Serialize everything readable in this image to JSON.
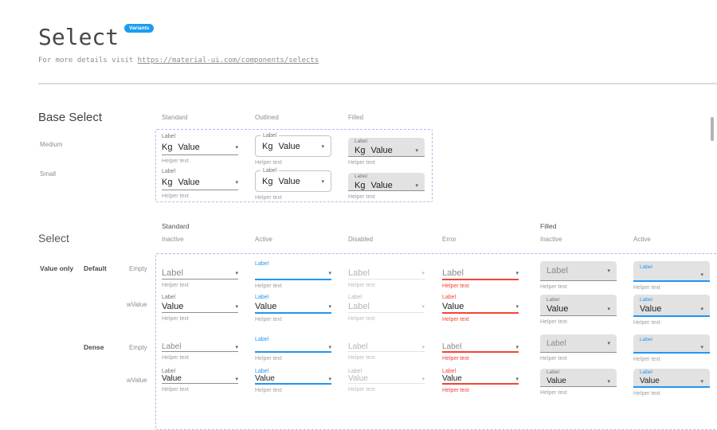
{
  "header": {
    "title": "Select",
    "badge": "Variants",
    "subtitle_prefix": "For more details visit ",
    "subtitle_link": "https://material-ui.com/components/selects"
  },
  "colors": {
    "accent_blue": "#2196F3",
    "error_red": "#F44336",
    "badge_blue": "#1A9DF0",
    "dashed_border": "#B9B9EA"
  },
  "base_select": {
    "heading": "Base Select",
    "columns": [
      "Standard",
      "Outlined",
      "Filled"
    ],
    "rows": [
      "Medium",
      "Small"
    ],
    "cells": {
      "medium_standard": {
        "variant": "standard",
        "state": "inactive",
        "float_label": true,
        "label": "Label",
        "prefix": "Kg",
        "value": "Value",
        "helper": "Helper text"
      },
      "medium_outlined": {
        "variant": "outlined",
        "state": "inactive",
        "float_label": true,
        "label": "Label",
        "prefix": "Kg",
        "value": "Value",
        "helper": "Helper text"
      },
      "medium_filled": {
        "variant": "filled",
        "state": "inactive",
        "float_label": true,
        "label": "Label",
        "prefix": "Kg",
        "value": "Value",
        "helper": "Helper text"
      },
      "small_standard": {
        "variant": "standard",
        "state": "inactive",
        "float_label": true,
        "label": "Label",
        "prefix": "Kg",
        "value": "Value",
        "helper": "Helper text"
      },
      "small_outlined": {
        "variant": "outlined",
        "state": "inactive",
        "float_label": true,
        "label": "Label",
        "prefix": "Kg",
        "value": "Value",
        "helper": "Helper text"
      },
      "small_filled": {
        "variant": "filled",
        "state": "inactive",
        "float_label": true,
        "label": "Label",
        "prefix": "Kg",
        "value": "Value",
        "helper": "Helper text"
      }
    }
  },
  "select_grid": {
    "heading": "Select",
    "group_columns": [
      "Standard",
      "Filled"
    ],
    "columns": [
      "Inactive",
      "Active",
      "Disabled",
      "Error",
      "Inactive",
      "Active"
    ],
    "row_group_label": "Value only",
    "row_groups": [
      "Default",
      "Dense"
    ],
    "rows": [
      "Empty",
      "wValue"
    ],
    "cells": {
      "default_empty_std_inactive": {
        "variant": "standard",
        "state": "inactive",
        "float_label": false,
        "label": "Label",
        "value": "Label",
        "placeholder": true,
        "helper": "Helper text"
      },
      "default_empty_std_active": {
        "variant": "standard",
        "state": "active",
        "float_label": true,
        "label": "Label",
        "value": "",
        "helper": "Helper text"
      },
      "default_empty_std_disabled": {
        "variant": "standard",
        "state": "disabled",
        "float_label": false,
        "label": "Label",
        "value": "Label",
        "placeholder": true,
        "helper": "Helper text"
      },
      "default_empty_std_error": {
        "variant": "standard",
        "state": "error",
        "float_label": false,
        "label": "Label",
        "value": "Label",
        "placeholder": true,
        "helper": "Helper text"
      },
      "default_empty_fil_inactive": {
        "variant": "filled",
        "state": "inactive",
        "float_label": false,
        "label": "Label",
        "value": "Label",
        "placeholder": true,
        "helper": "Helper text"
      },
      "default_empty_fil_active": {
        "variant": "filled",
        "state": "active",
        "float_label": true,
        "label": "Label",
        "value": "",
        "helper": "Helper text"
      },
      "default_value_std_inactive": {
        "variant": "standard",
        "state": "inactive",
        "float_label": true,
        "label": "Label",
        "value": "Value",
        "helper": "Helper text"
      },
      "default_value_std_active": {
        "variant": "standard",
        "state": "active",
        "float_label": true,
        "label": "Label",
        "value": "Value",
        "helper": "Helper text"
      },
      "default_value_std_disabled": {
        "variant": "standard",
        "state": "disabled",
        "float_label": true,
        "label": "Label",
        "value": "Label",
        "placeholder": true,
        "helper": "Helper text"
      },
      "default_value_std_error": {
        "variant": "standard",
        "state": "error",
        "float_label": true,
        "label": "Label",
        "value": "Value",
        "helper": "Helper text"
      },
      "default_value_fil_inactive": {
        "variant": "filled",
        "state": "inactive",
        "float_label": true,
        "label": "Label",
        "value": "Value",
        "helper": "Helper text"
      },
      "default_value_fil_active": {
        "variant": "filled",
        "state": "active",
        "float_label": true,
        "label": "Label",
        "value": "Value",
        "helper": "Helper text"
      },
      "dense_empty_std_inactive": {
        "variant": "standard",
        "state": "inactive",
        "float_label": false,
        "label": "Label",
        "value": "Label",
        "placeholder": true,
        "helper": "Helper text"
      },
      "dense_empty_std_active": {
        "variant": "standard",
        "state": "active",
        "float_label": true,
        "label": "Label",
        "value": "",
        "helper": "Helper text"
      },
      "dense_empty_std_disabled": {
        "variant": "standard",
        "state": "disabled",
        "float_label": false,
        "label": "Label",
        "value": "Label",
        "placeholder": true,
        "helper": "Helper text"
      },
      "dense_empty_std_error": {
        "variant": "standard",
        "state": "error",
        "float_label": false,
        "label": "Label",
        "value": "Label",
        "placeholder": true,
        "helper": "Helper text"
      },
      "dense_empty_fil_inactive": {
        "variant": "filled",
        "state": "inactive",
        "float_label": false,
        "label": "Label",
        "value": "Label",
        "placeholder": true,
        "helper": "Helper text"
      },
      "dense_empty_fil_active": {
        "variant": "filled",
        "state": "active",
        "float_label": true,
        "label": "Label",
        "value": "",
        "helper": "Helper text"
      },
      "dense_value_std_inactive": {
        "variant": "standard",
        "state": "inactive",
        "float_label": true,
        "label": "Label",
        "value": "Value",
        "helper": "Helper text"
      },
      "dense_value_std_active": {
        "variant": "standard",
        "state": "active",
        "float_label": true,
        "label": "Label",
        "value": "Value",
        "helper": "Helper text"
      },
      "dense_value_std_disabled": {
        "variant": "standard",
        "state": "disabled",
        "float_label": true,
        "label": "Label",
        "value": "Value",
        "placeholder": true,
        "helper": "Helper text"
      },
      "dense_value_std_error": {
        "variant": "standard",
        "state": "error",
        "float_label": true,
        "label": "Label",
        "value": "Value",
        "helper": "Helper text"
      },
      "dense_value_fil_inactive": {
        "variant": "filled",
        "state": "inactive",
        "float_label": true,
        "label": "Label",
        "value": "Value",
        "helper": "Helper text"
      },
      "dense_value_fil_active": {
        "variant": "filled",
        "state": "active",
        "float_label": true,
        "label": "Label",
        "value": "Value",
        "helper": "Helper text"
      }
    }
  }
}
